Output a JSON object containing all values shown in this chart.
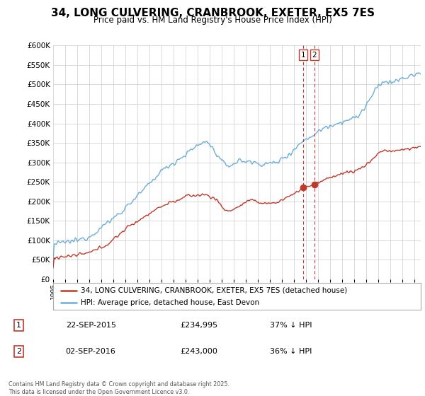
{
  "title": "34, LONG CULVERING, CRANBROOK, EXETER, EX5 7ES",
  "subtitle": "Price paid vs. HM Land Registry's House Price Index (HPI)",
  "legend_entries": [
    "34, LONG CULVERING, CRANBROOK, EXETER, EX5 7ES (detached house)",
    "HPI: Average price, detached house, East Devon"
  ],
  "transactions": [
    {
      "date": "22-SEP-2015",
      "price": 234995,
      "hpi_pct": "37% ↓ HPI",
      "label": "1"
    },
    {
      "date": "02-SEP-2016",
      "price": 243000,
      "hpi_pct": "36% ↓ HPI",
      "label": "2"
    }
  ],
  "transaction_dates_num": [
    2015.73,
    2016.67
  ],
  "transaction_prices": [
    234995,
    243000
  ],
  "hpi_color": "#6baed6",
  "price_color": "#c0392b",
  "vline_color": "#c0392b",
  "dot_color": "#c0392b",
  "ylim": [
    0,
    600000
  ],
  "yticks": [
    0,
    50000,
    100000,
    150000,
    200000,
    250000,
    300000,
    350000,
    400000,
    450000,
    500000,
    550000,
    600000
  ],
  "footer": "Contains HM Land Registry data © Crown copyright and database right 2025.\nThis data is licensed under the Open Government Licence v3.0."
}
